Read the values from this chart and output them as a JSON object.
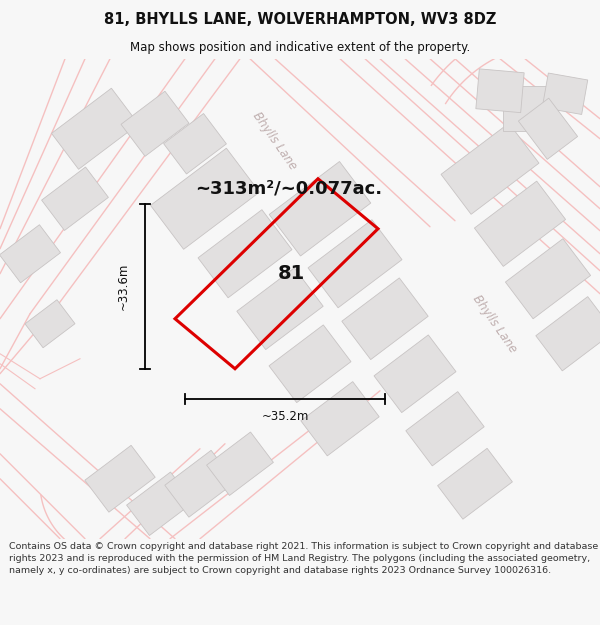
{
  "title": "81, BHYLLS LANE, WOLVERHAMPTON, WV3 8DZ",
  "subtitle": "Map shows position and indicative extent of the property.",
  "area_label": "~313m²/~0.077ac.",
  "property_number": "81",
  "dim_width": "~35.2m",
  "dim_height": "~33.6m",
  "footer": "Contains OS data © Crown copyright and database right 2021. This information is subject to Crown copyright and database rights 2023 and is reproduced with the permission of HM Land Registry. The polygons (including the associated geometry, namely x, y co-ordinates) are subject to Crown copyright and database rights 2023 Ordnance Survey 100026316.",
  "bg_color": "#f7f7f7",
  "map_bg": "#ffffff",
  "road_color": "#f5c0c0",
  "road_color2": "#e8a8a8",
  "building_color": "#e2e0e0",
  "building_stroke": "#c8c4c4",
  "plot_color": "#dd0000",
  "road_label_color": "#c0b0b0",
  "text_color": "#111111",
  "footer_color": "#333333"
}
